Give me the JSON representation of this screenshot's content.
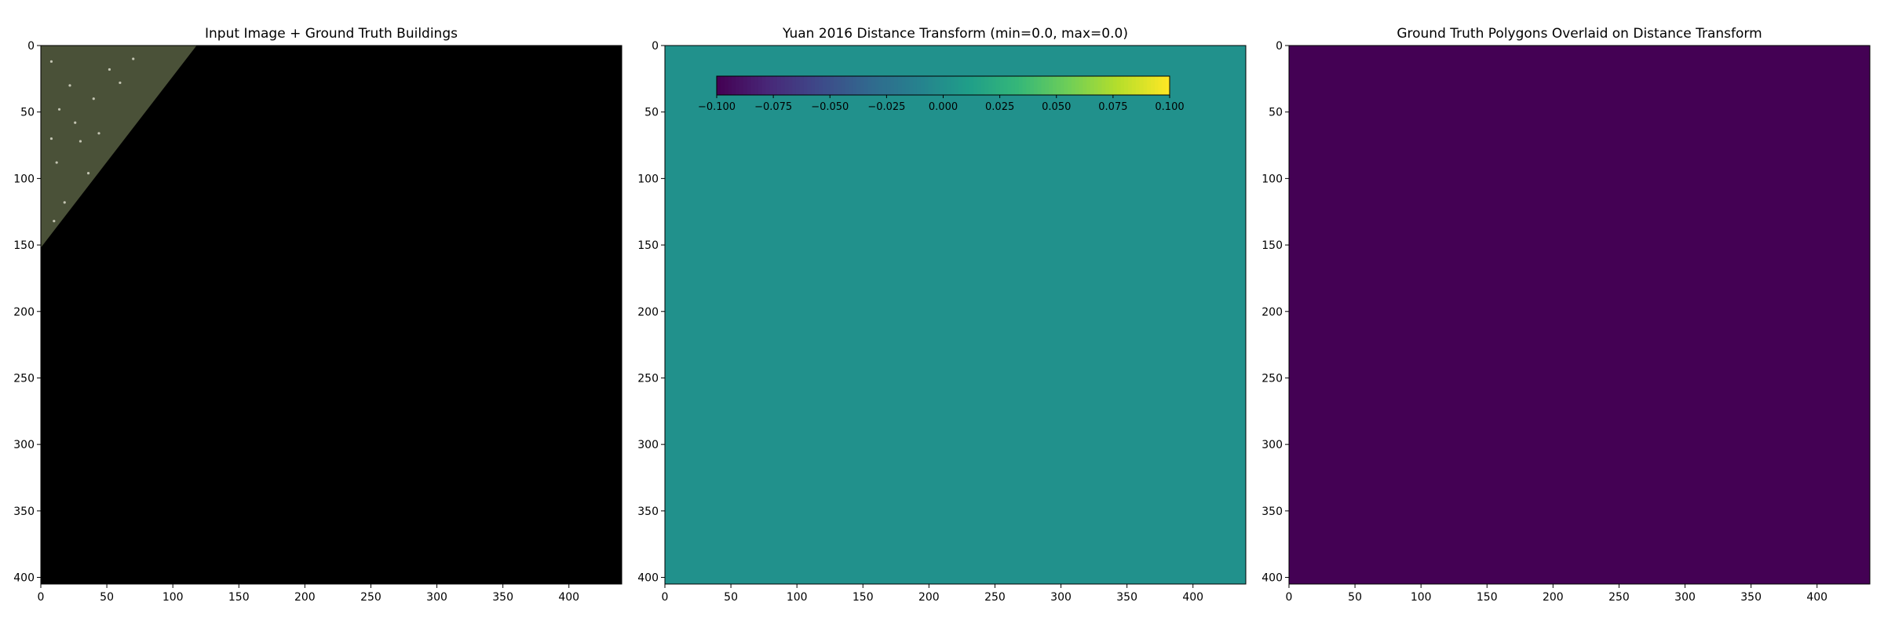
{
  "figure": {
    "background": "#ffffff"
  },
  "chart_data": [
    {
      "type": "heatmap",
      "title": "Input Image + Ground Truth Buildings",
      "xlabel": "",
      "ylabel": "",
      "xlim": [
        0,
        440
      ],
      "ylim": [
        405,
        0
      ],
      "xticks": [
        0,
        50,
        100,
        150,
        200,
        250,
        300,
        350,
        400
      ],
      "yticks": [
        0,
        50,
        100,
        150,
        200,
        250,
        300,
        350,
        400
      ],
      "background_color": "#000000",
      "region": {
        "description_color": "#4a5138",
        "polygon": [
          [
            0,
            0
          ],
          [
            118,
            0
          ],
          [
            0,
            152
          ]
        ]
      },
      "colorbar": null
    },
    {
      "type": "heatmap",
      "title": "Yuan 2016 Distance Transform (min=0.0, max=0.0)",
      "xlabel": "",
      "ylabel": "",
      "xlim": [
        0,
        440
      ],
      "ylim": [
        405,
        0
      ],
      "xticks": [
        0,
        50,
        100,
        150,
        200,
        250,
        300,
        350,
        400
      ],
      "yticks": [
        0,
        50,
        100,
        150,
        200,
        250,
        300,
        350,
        400
      ],
      "value": 0.0,
      "fill_color": "#21918c",
      "colorbar": {
        "colormap": "viridis",
        "range": [
          -0.1,
          0.1
        ],
        "ticks": [
          -0.1,
          -0.075,
          -0.05,
          -0.025,
          0.0,
          0.025,
          0.05,
          0.075,
          0.1
        ],
        "tick_labels": [
          "−0.100",
          "−0.075",
          "−0.050",
          "−0.025",
          "0.000",
          "0.025",
          "0.050",
          "0.075",
          "0.100"
        ],
        "orientation": "horizontal",
        "placement": "inset top"
      }
    },
    {
      "type": "heatmap",
      "title": "Ground Truth Polygons Overlaid on Distance Transform",
      "xlabel": "",
      "ylabel": "",
      "xlim": [
        0,
        440
      ],
      "ylim": [
        405,
        0
      ],
      "xticks": [
        0,
        50,
        100,
        150,
        200,
        250,
        300,
        350,
        400
      ],
      "yticks": [
        0,
        50,
        100,
        150,
        200,
        250,
        300,
        350,
        400
      ],
      "fill_color": "#440154",
      "colorbar": null
    }
  ]
}
